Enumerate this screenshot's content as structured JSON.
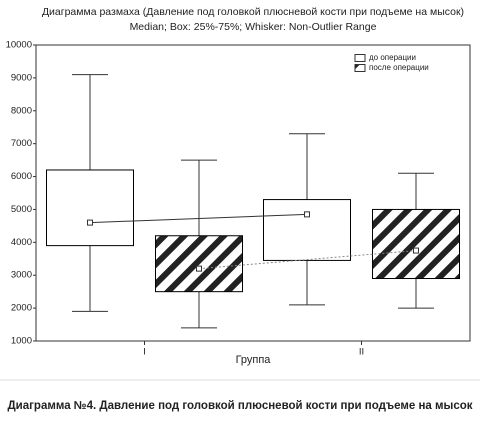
{
  "chart_data": {
    "type": "box",
    "title": "Диаграмма размаха (Давление под головкой плюсневой кости при подъеме на мысок)",
    "subtitle": "Median; Box: 25%-75%; Whisker: Non-Outlier Range",
    "x_label": "Группа",
    "categories": [
      "I",
      "II"
    ],
    "series": [
      {
        "name": "до операции",
        "hatch": false,
        "color": "#000000",
        "min": [
          1900,
          2100
        ],
        "q1": [
          3900,
          3450
        ],
        "median": [
          4600,
          4850
        ],
        "q3": [
          6200,
          5300
        ],
        "max": [
          9100,
          7300
        ]
      },
      {
        "name": "после операции",
        "hatch": true,
        "color": "#000000",
        "min": [
          1400,
          2000
        ],
        "q1": [
          2500,
          2900
        ],
        "median": [
          3200,
          3750
        ],
        "q3": [
          4200,
          5000
        ],
        "max": [
          6500,
          6100
        ]
      }
    ],
    "ylim": [
      1000,
      10000
    ],
    "yticks": [
      1000,
      2000,
      3000,
      4000,
      5000,
      6000,
      7000,
      8000,
      9000,
      10000
    ],
    "legend": "top-right",
    "caption": "Диаграмма №4. Давление под головкой плюсневой кости при подъеме на мысок"
  }
}
